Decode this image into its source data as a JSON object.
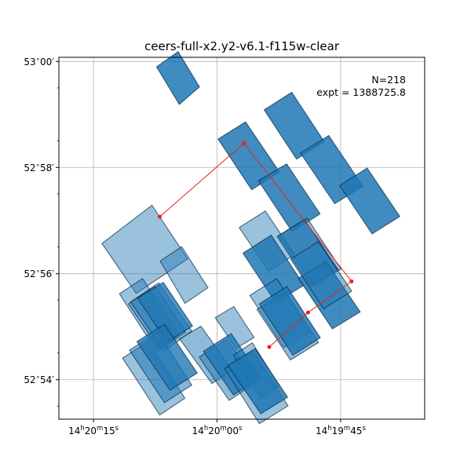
{
  "chart_data": {
    "type": "scatter",
    "title": "ceers-full-x2.y2-v6.1-f115w-clear",
    "annotations": [
      "N=218",
      "expt = 1388725.8"
    ],
    "grid": true,
    "xlabel": "",
    "ylabel": "",
    "x_axis": {
      "quantity": "RA (deg)",
      "inverted": true,
      "range": [
        215.08,
        214.895
      ],
      "ticks": [
        {
          "value": 215.0625,
          "text": "14h20m15s",
          "parts": [
            "14",
            "h",
            "20",
            "m",
            "15",
            "s"
          ]
        },
        {
          "value": 215.0,
          "text": "14h20m00s",
          "parts": [
            "14",
            "h",
            "20",
            "m",
            "00",
            "s"
          ]
        },
        {
          "value": 214.9375,
          "text": "14h19m45s",
          "parts": [
            "14",
            "h",
            "19",
            "m",
            "45",
            "s"
          ]
        }
      ]
    },
    "y_axis": {
      "quantity": "Dec (deg)",
      "range": [
        52.8876,
        53.0013
      ],
      "ticks": [
        {
          "value": 52.9,
          "text": "52°54′",
          "deg": "52",
          "deg_sym": "∘",
          "min": "54′"
        },
        {
          "value": 52.9333,
          "text": "52°56′",
          "deg": "52",
          "deg_sym": "∘",
          "min": "56′"
        },
        {
          "value": 52.9667,
          "text": "52°58′",
          "deg": "52",
          "deg_sym": "∘",
          "min": "58′"
        },
        {
          "value": 53.0,
          "text": "53°00′",
          "deg": "53",
          "deg_sym": "∘",
          "min": "00′"
        }
      ]
    },
    "colors": {
      "footprint": "#1f77b4",
      "edge": "#0a2a45",
      "path": "#e8231b"
    },
    "footprints": [
      {
        "alpha": 0.45,
        "corners": [
          [
            215.0582,
            52.9428
          ],
          [
            215.0329,
            52.9548
          ],
          [
            215.0149,
            52.938
          ],
          [
            215.0409,
            52.9271
          ]
        ]
      },
      {
        "alpha": 0.45,
        "corners": [
          [
            215.0288,
            52.9373
          ],
          [
            215.0179,
            52.9418
          ],
          [
            215.0046,
            52.9289
          ],
          [
            215.0162,
            52.924
          ]
        ]
      },
      {
        "alpha": 0.45,
        "corners": [
          [
            215.0494,
            52.927
          ],
          [
            215.0377,
            52.9318
          ],
          [
            215.0192,
            52.9141
          ],
          [
            215.0305,
            52.9089
          ]
        ]
      },
      {
        "alpha": 0.45,
        "corners": [
          [
            215.0448,
            52.9238
          ],
          [
            215.0314,
            52.9294
          ],
          [
            215.0158,
            52.9149
          ],
          [
            215.0291,
            52.9095
          ]
        ]
      },
      {
        "alpha": 0.5,
        "corners": [
          [
            215.0437,
            52.9245
          ],
          [
            215.0295,
            52.9304
          ],
          [
            215.0128,
            52.9153
          ],
          [
            215.0269,
            52.909
          ]
        ]
      },
      {
        "alpha": 0.8,
        "corners": [
          [
            215.0402,
            52.9256
          ],
          [
            215.0272,
            52.9306
          ],
          [
            215.0124,
            52.9169
          ],
          [
            215.0253,
            52.9118
          ]
        ]
      },
      {
        "alpha": 0.45,
        "corners": [
          [
            215.0478,
            52.9068
          ],
          [
            215.0348,
            52.912
          ],
          [
            215.0163,
            52.8942
          ],
          [
            215.029,
            52.8889
          ]
        ]
      },
      {
        "alpha": 0.55,
        "corners": [
          [
            215.0443,
            52.9093
          ],
          [
            215.0299,
            52.915
          ],
          [
            215.0128,
            52.8983
          ],
          [
            215.0266,
            52.8928
          ]
        ]
      },
      {
        "alpha": 0.8,
        "corners": [
          [
            215.0405,
            52.912
          ],
          [
            215.0266,
            52.9174
          ],
          [
            215.01,
            52.9021
          ],
          [
            215.0238,
            52.8967
          ]
        ]
      },
      {
        "alpha": 0.85,
        "corners": [
          [
            215.0306,
            52.9983
          ],
          [
            215.0197,
            53.0031
          ],
          [
            215.0089,
            52.992
          ],
          [
            215.0191,
            52.9865
          ]
        ]
      },
      {
        "alpha": 0.5,
        "corners": [
          [
            215.0189,
            52.9128
          ],
          [
            215.0082,
            52.9168
          ],
          [
            214.9923,
            52.903
          ],
          [
            215.0026,
            52.8988
          ]
        ]
      },
      {
        "alpha": 0.45,
        "corners": [
          [
            215.0009,
            52.9195
          ],
          [
            214.9915,
            52.923
          ],
          [
            214.9813,
            52.9133
          ],
          [
            214.9904,
            52.9098
          ]
        ]
      },
      {
        "alpha": 0.5,
        "corners": [
          [
            215.009,
            52.9071
          ],
          [
            214.995,
            52.9128
          ],
          [
            214.9801,
            52.8992
          ],
          [
            214.9939,
            52.8935
          ]
        ]
      },
      {
        "alpha": 0.8,
        "corners": [
          [
            215.0069,
            52.9089
          ],
          [
            214.9929,
            52.9145
          ],
          [
            214.9778,
            52.9008
          ],
          [
            214.9917,
            52.8952
          ]
        ]
      },
      {
        "alpha": 0.45,
        "corners": [
          [
            214.9917,
            52.9077
          ],
          [
            214.9822,
            52.9116
          ],
          [
            214.9684,
            52.898
          ],
          [
            214.978,
            52.8941
          ]
        ]
      },
      {
        "alpha": 0.45,
        "corners": [
          [
            214.9962,
            52.9035
          ],
          [
            214.9819,
            52.9089
          ],
          [
            214.9641,
            52.8918
          ],
          [
            214.9786,
            52.8862
          ]
        ]
      },
      {
        "alpha": 0.85,
        "corners": [
          [
            214.9945,
            52.9045
          ],
          [
            214.9808,
            52.9098
          ],
          [
            214.9643,
            52.8945
          ],
          [
            214.9779,
            52.8893
          ]
        ]
      },
      {
        "alpha": 0.85,
        "corners": [
          [
            214.9995,
            52.9756
          ],
          [
            214.9856,
            52.981
          ],
          [
            214.9685,
            52.9653
          ],
          [
            214.9825,
            52.9597
          ]
        ]
      },
      {
        "alpha": 0.85,
        "corners": [
          [
            214.9762,
            52.9848
          ],
          [
            214.9622,
            52.9903
          ],
          [
            214.9458,
            52.9748
          ],
          [
            214.9598,
            52.9693
          ]
        ]
      },
      {
        "alpha": 0.45,
        "corners": [
          [
            214.9888,
            52.9478
          ],
          [
            214.9756,
            52.953
          ],
          [
            214.9608,
            52.9393
          ],
          [
            214.9739,
            52.9341
          ]
        ]
      },
      {
        "alpha": 0.85,
        "corners": [
          [
            214.9791,
            52.9625
          ],
          [
            214.9648,
            52.9678
          ],
          [
            214.9479,
            52.9521
          ],
          [
            214.962,
            52.9465
          ]
        ]
      },
      {
        "alpha": 0.85,
        "corners": [
          [
            214.9578,
            52.9712
          ],
          [
            214.9435,
            52.9767
          ],
          [
            214.9263,
            52.9608
          ],
          [
            214.9405,
            52.9553
          ]
        ]
      },
      {
        "alpha": 0.85,
        "corners": [
          [
            214.938,
            52.961
          ],
          [
            214.9241,
            52.9665
          ],
          [
            214.9076,
            52.9513
          ],
          [
            214.9216,
            52.9458
          ]
        ]
      },
      {
        "alpha": 0.45,
        "corners": [
          [
            214.9686,
            52.9454
          ],
          [
            214.9545,
            52.9508
          ],
          [
            214.9373,
            52.9348
          ],
          [
            214.9511,
            52.9293
          ]
        ]
      },
      {
        "alpha": 0.8,
        "corners": [
          [
            214.9696,
            52.945
          ],
          [
            214.9558,
            52.9503
          ],
          [
            214.9388,
            52.9346
          ],
          [
            214.9529,
            52.9293
          ]
        ]
      },
      {
        "alpha": 0.85,
        "corners": [
          [
            214.9869,
            52.9398
          ],
          [
            214.9726,
            52.9454
          ],
          [
            214.9561,
            52.9297
          ],
          [
            214.9704,
            52.9242
          ]
        ]
      },
      {
        "alpha": 0.45,
        "corners": [
          [
            214.9834,
            52.9265
          ],
          [
            214.9698,
            52.9318
          ],
          [
            214.9527,
            52.9153
          ],
          [
            214.9662,
            52.9101
          ]
        ]
      },
      {
        "alpha": 0.5,
        "corners": [
          [
            214.9798,
            52.9221
          ],
          [
            214.9655,
            52.9275
          ],
          [
            214.9487,
            52.9117
          ],
          [
            214.9629,
            52.9062
          ]
        ]
      },
      {
        "alpha": 0.85,
        "corners": [
          [
            214.9787,
            52.9238
          ],
          [
            214.9647,
            52.9293
          ],
          [
            214.9478,
            52.9132
          ],
          [
            214.9617,
            52.9077
          ]
        ]
      },
      {
        "alpha": 0.85,
        "corners": [
          [
            214.9589,
            52.9319
          ],
          [
            214.9449,
            52.9372
          ],
          [
            214.9276,
            52.9213
          ],
          [
            214.9417,
            52.916
          ]
        ]
      },
      {
        "alpha": 0.5,
        "corners": [
          [
            214.9628,
            52.9379
          ],
          [
            214.9487,
            52.9434
          ],
          [
            214.9319,
            52.9278
          ],
          [
            214.9461,
            52.9223
          ]
        ]
      }
    ],
    "path": [
      [
        215.029,
        52.9512
      ],
      [
        214.9864,
        52.9743
      ],
      [
        214.932,
        52.9309
      ],
      [
        214.954,
        52.9211
      ],
      [
        214.9736,
        52.9103
      ]
    ]
  }
}
